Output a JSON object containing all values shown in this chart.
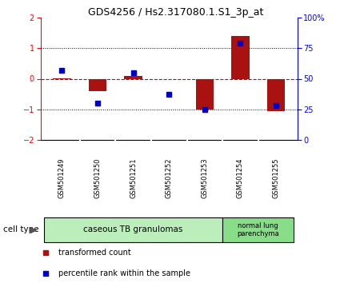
{
  "title": "GDS4256 / Hs2.317080.1.S1_3p_at",
  "samples": [
    "GSM501249",
    "GSM501250",
    "GSM501251",
    "GSM501252",
    "GSM501253",
    "GSM501254",
    "GSM501255"
  ],
  "transformed_counts": [
    0.02,
    -0.4,
    0.1,
    -0.02,
    -1.0,
    1.4,
    -1.05
  ],
  "percentile_ranks": [
    57,
    30,
    55,
    37,
    25,
    79,
    28
  ],
  "ylim_left": [
    -2,
    2
  ],
  "ylim_right": [
    0,
    100
  ],
  "yticks_left": [
    -2,
    -1,
    0,
    1,
    2
  ],
  "yticks_right": [
    0,
    25,
    50,
    75,
    100
  ],
  "ytick_labels_right": [
    "0",
    "25",
    "50",
    "75",
    "100%"
  ],
  "bar_color": "#aa1111",
  "dot_color": "#0000cc",
  "zero_line_color": "#cc0000",
  "grid_color": "#000000",
  "cell_types": [
    {
      "label": "caseous TB granulomas",
      "n_samples": 5,
      "color": "#bbeebb"
    },
    {
      "label": "normal lung\nparenchyma",
      "n_samples": 2,
      "color": "#88dd88"
    }
  ],
  "bg_color": "#ffffff",
  "plot_bg": "#ffffff",
  "sample_bg": "#cccccc",
  "legend_red_label": "transformed count",
  "legend_blue_label": "percentile rank within the sample",
  "cell_type_label": "cell type"
}
